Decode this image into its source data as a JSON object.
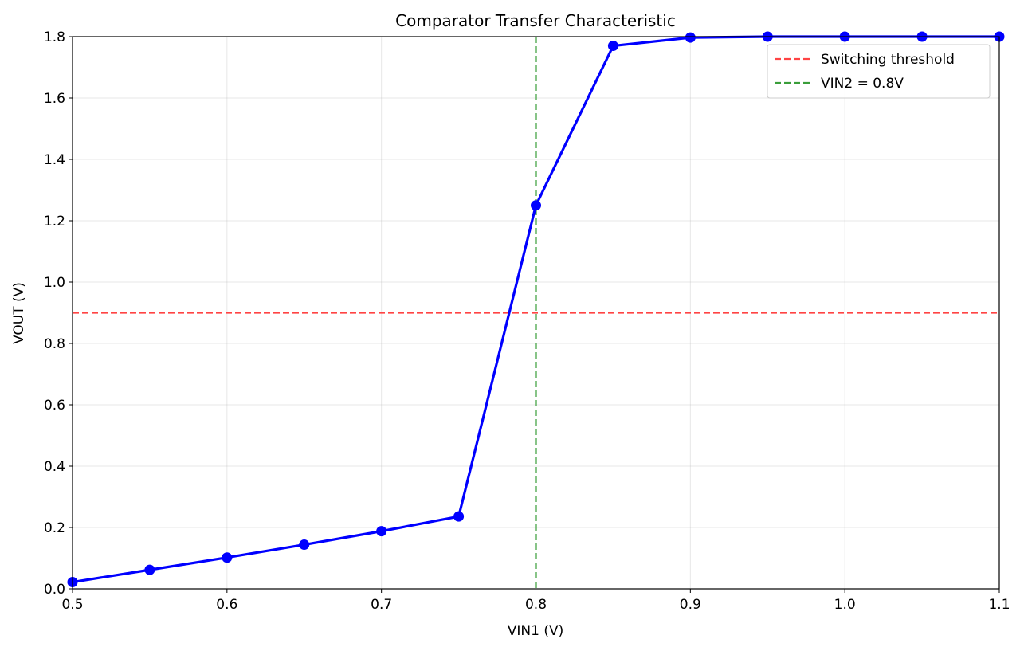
{
  "chart_data": {
    "type": "line",
    "title": "Comparator Transfer Characteristic",
    "xlabel": "VIN1 (V)",
    "ylabel": "VOUT (V)",
    "xlim": [
      0.5,
      1.1
    ],
    "ylim": [
      0.0,
      1.8
    ],
    "x_ticks": [
      "0.5",
      "0.6",
      "0.7",
      "0.8",
      "0.9",
      "1.0",
      "1.1"
    ],
    "y_ticks": [
      "0.0",
      "0.2",
      "0.4",
      "0.6",
      "0.8",
      "1.0",
      "1.2",
      "1.4",
      "1.6",
      "1.8"
    ],
    "grid": true,
    "legend_position": "top-right",
    "series": [
      {
        "color": "#0000ff",
        "marker": "circle",
        "x": [
          0.5,
          0.55,
          0.6,
          0.65,
          0.7,
          0.75,
          0.8,
          0.85,
          0.9,
          0.95,
          1.0,
          1.05,
          1.1
        ],
        "y": [
          0.022,
          0.062,
          0.102,
          0.144,
          0.188,
          0.236,
          1.25,
          1.77,
          1.797,
          1.8,
          1.8,
          1.8,
          1.8
        ]
      }
    ],
    "reference_lines": [
      {
        "name": "Switching threshold",
        "orientation": "horizontal",
        "value": 0.9,
        "color": "#ff4444",
        "style": "dashed"
      },
      {
        "name": "VIN2 = 0.8V",
        "orientation": "vertical",
        "value": 0.8,
        "color": "#3a9e3a",
        "style": "dashed"
      }
    ]
  }
}
